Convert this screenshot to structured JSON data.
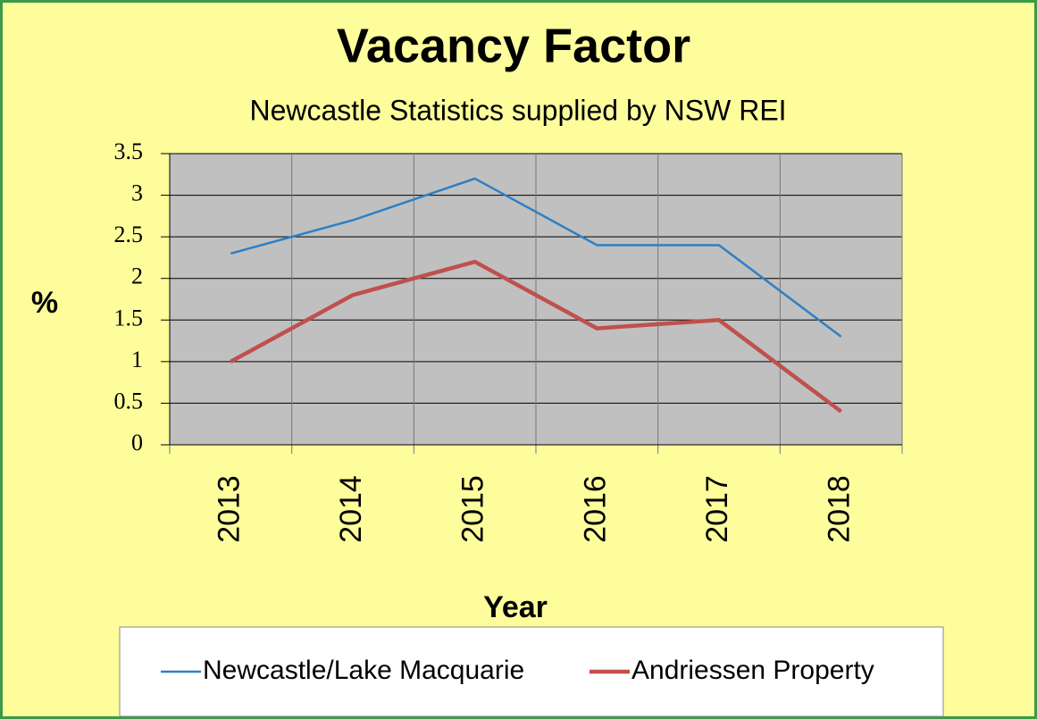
{
  "chart_data": {
    "type": "line",
    "title": "Vacancy Factor",
    "subtitle": "Newcastle Statistics supplied by NSW REI",
    "x_label": "Year",
    "y_label": "%",
    "categories": [
      "2013",
      "2014",
      "2015",
      "2016",
      "2017",
      "2018"
    ],
    "series": [
      {
        "name": "Newcastle/Lake Macquarie",
        "color": "#2e7fc4",
        "values": [
          2.3,
          2.7,
          3.2,
          2.4,
          2.4,
          1.3
        ]
      },
      {
        "name": "Andriessen Property",
        "color": "#c0504d",
        "values": [
          1.0,
          1.8,
          2.2,
          1.4,
          1.5,
          0.4
        ]
      }
    ],
    "ylim": [
      0,
      3.5
    ],
    "yticks": [
      0,
      0.5,
      1,
      1.5,
      2,
      2.5,
      3,
      3.5
    ],
    "grid": true,
    "legend": "bottom"
  }
}
